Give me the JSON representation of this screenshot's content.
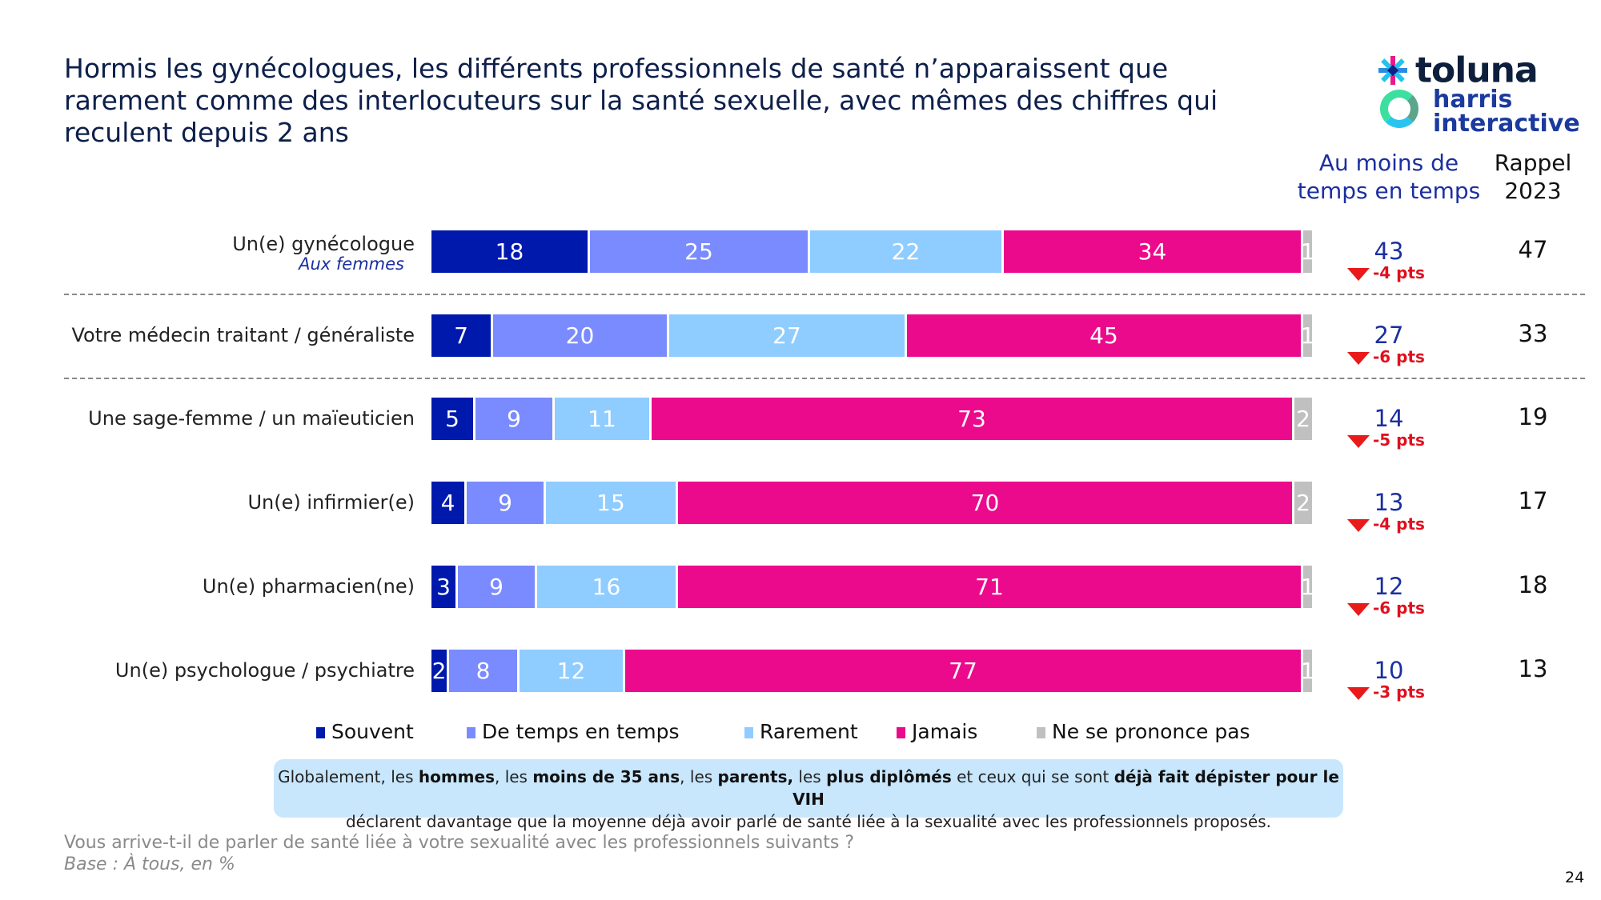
{
  "title": "Hormis les gynécologues, les différents professionnels de santé n’apparaissent que rarement comme des interlocuteurs sur la santé sexuelle, avec mêmes des chiffres qui reculent depuis 2 ans",
  "logo": {
    "brand1": "toluna",
    "brand2_line1": "harris",
    "brand2_line2": "interactive"
  },
  "columns": {
    "summary_header": "Au moins de temps en temps",
    "recall_header_line1": "Rappel",
    "recall_header_line2": "2023"
  },
  "colors": {
    "souvent": "#0019ad",
    "de_temps": "#7a8bff",
    "rarement": "#8fccff",
    "jamais": "#ec0a8c",
    "nsp": "#c0c0c0",
    "delta": "#e0101e",
    "summary": "#1b2fa0"
  },
  "chart_data": {
    "type": "bar",
    "orientation": "horizontal-stacked-100",
    "title": "Hormis les gynécologues, les différents professionnels de santé n’apparaissent que rarement comme des interlocuteurs sur la santé sexuelle, avec mêmes des chiffres qui reculent depuis 2 ans",
    "categories": [
      "Un(e) gynécologue",
      "Votre médecin traitant / généraliste",
      "Une sage-femme / un maïeuticien",
      "Un(e) infirmier(e)",
      "Un(e) pharmacien(ne)",
      "Un(e) psychologue / psychiatre"
    ],
    "category_notes": [
      "Aux femmes",
      "",
      "",
      "",
      "",
      ""
    ],
    "series": [
      {
        "name": "Souvent",
        "values": [
          18,
          7,
          5,
          4,
          3,
          2
        ]
      },
      {
        "name": "De temps en temps",
        "values": [
          25,
          20,
          9,
          9,
          9,
          8
        ]
      },
      {
        "name": "Rarement",
        "values": [
          22,
          27,
          11,
          15,
          16,
          12
        ]
      },
      {
        "name": "Jamais",
        "values": [
          34,
          45,
          73,
          70,
          71,
          77
        ]
      },
      {
        "name": "Ne se prononce pas",
        "values": [
          1,
          1,
          2,
          2,
          1,
          1
        ]
      }
    ],
    "au_moins_de_temps_en_temps": [
      43,
      27,
      14,
      13,
      12,
      10
    ],
    "evolution": [
      "-4 pts",
      "-6 pts",
      "-5 pts",
      "-4 pts",
      "-6 pts",
      "-3 pts"
    ],
    "rappel_2023": [
      47,
      33,
      19,
      17,
      18,
      13
    ],
    "legend_position": "bottom",
    "xlim": [
      0,
      100
    ],
    "units": "%"
  },
  "note": {
    "parts": [
      {
        "t": "Globalement, les ",
        "b": false
      },
      {
        "t": "hommes",
        "b": true
      },
      {
        "t": ", les ",
        "b": false
      },
      {
        "t": "moins de 35 ans",
        "b": true
      },
      {
        "t": ", les ",
        "b": false
      },
      {
        "t": "parents,",
        "b": true
      },
      {
        "t": " les ",
        "b": false
      },
      {
        "t": "plus diplômés",
        "b": true
      },
      {
        "t": " et ceux qui se sont ",
        "b": false
      },
      {
        "t": "déjà fait dépister pour le VIH",
        "b": true
      }
    ],
    "line2": "déclarent davantage que la moyenne déjà avoir parlé de santé liée à la sexualité avec les professionnels proposés."
  },
  "footer": {
    "question": "Vous arrive-t-il de parler de santé liée à votre sexualité avec les professionnels suivants ?",
    "base": "Base : À tous, en %"
  },
  "page_number": "24"
}
